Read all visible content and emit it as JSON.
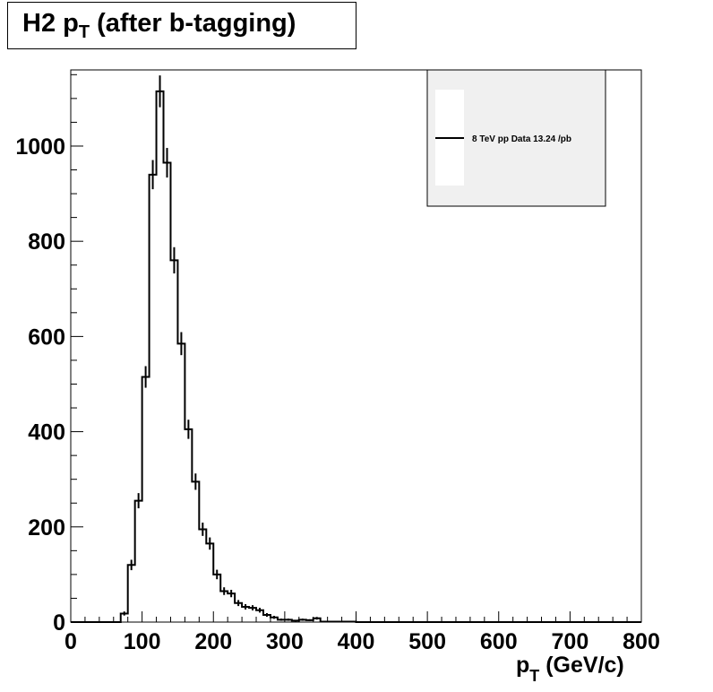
{
  "title": {
    "main": "H2 p",
    "sub": "T",
    "rest": " (after b-tagging)"
  },
  "xlabel": {
    "main": "p",
    "sub": "T",
    "rest": " (GeV/c)"
  },
  "legend": {
    "entry": "8 TeV pp Data 13.24 /pb"
  },
  "chart_data": {
    "type": "bar",
    "style": "step-histogram-with-error-bars",
    "bin_width": 10,
    "x_bin_edges_start": 0,
    "xlim": [
      0,
      800
    ],
    "ylim": [
      0,
      1160
    ],
    "x_ticks": [
      0,
      100,
      200,
      300,
      400,
      500,
      600,
      700,
      800
    ],
    "y_ticks": [
      0,
      200,
      400,
      600,
      800,
      1000
    ],
    "x_tick_labels": [
      "0",
      "100",
      "200",
      "300",
      "400",
      "500",
      "600",
      "700",
      "800"
    ],
    "y_tick_labels": [
      "0",
      "200",
      "400",
      "600",
      "800",
      "1000"
    ],
    "legend_placement": "top-right",
    "series": [
      {
        "name": "8 TeV pp Data 13.24 /pb",
        "values": [
          0,
          0,
          0,
          0,
          0,
          0,
          0,
          18,
          120,
          255,
          515,
          940,
          1115,
          965,
          760,
          585,
          405,
          295,
          195,
          165,
          100,
          65,
          60,
          40,
          32,
          30,
          25,
          15,
          10,
          5,
          5,
          3,
          5,
          4,
          8,
          1,
          1,
          1,
          1,
          1,
          0,
          0,
          0,
          0,
          0,
          0,
          0,
          0,
          0,
          0,
          0,
          0,
          0,
          0,
          0,
          0,
          0,
          0,
          0,
          0,
          0,
          0,
          0,
          0,
          0,
          0,
          0,
          0,
          0,
          0,
          0,
          0,
          0,
          0,
          0,
          0,
          0,
          0,
          0,
          0
        ]
      }
    ]
  }
}
